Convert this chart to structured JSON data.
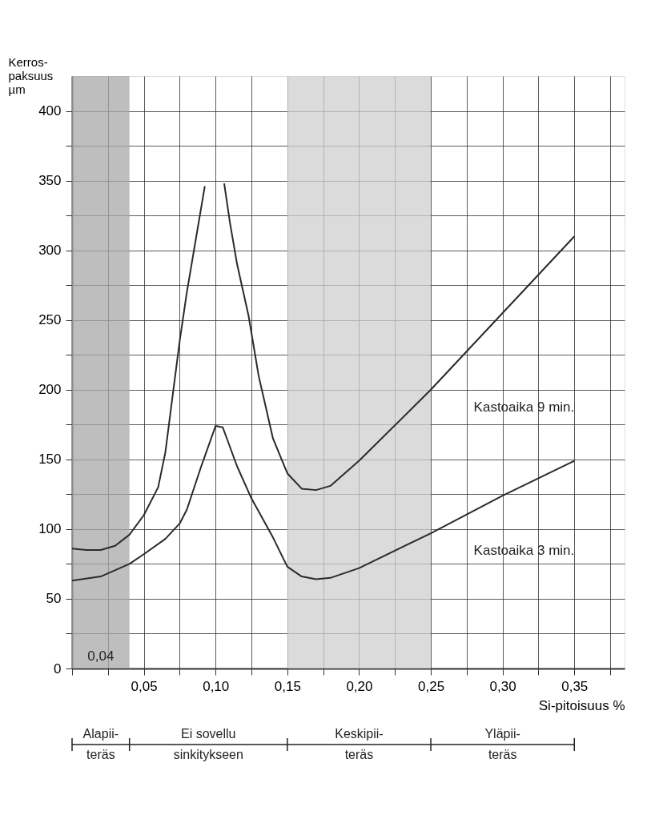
{
  "chart_data": {
    "type": "line",
    "ylabel": "Kerros-\npaksuus\nµm",
    "xlabel": "Si-pitoisuus   %",
    "xlim": [
      0,
      0.385
    ],
    "ylim": [
      0,
      425
    ],
    "xticks": [
      {
        "value": 0,
        "label": null
      },
      {
        "value": 0.025,
        "label": null
      },
      {
        "value": 0.05,
        "label": "0,05"
      },
      {
        "value": 0.075,
        "label": null
      },
      {
        "value": 0.1,
        "label": "0,10"
      },
      {
        "value": 0.125,
        "label": null
      },
      {
        "value": 0.15,
        "label": "0,15"
      },
      {
        "value": 0.175,
        "label": null
      },
      {
        "value": 0.2,
        "label": "0,20"
      },
      {
        "value": 0.225,
        "label": null
      },
      {
        "value": 0.25,
        "label": "0,25"
      },
      {
        "value": 0.275,
        "label": null
      },
      {
        "value": 0.3,
        "label": "0,30"
      },
      {
        "value": 0.325,
        "label": null
      },
      {
        "value": 0.35,
        "label": "0,35"
      },
      {
        "value": 0.375,
        "label": null
      }
    ],
    "yticks": [
      0,
      {
        "value": 25,
        "label": null
      },
      50,
      {
        "value": 75,
        "label": null
      },
      100,
      {
        "value": 125,
        "label": null
      },
      150,
      {
        "value": 175,
        "label": null
      },
      200,
      {
        "value": 225,
        "label": null
      },
      250,
      {
        "value": 275,
        "label": null
      },
      300,
      {
        "value": 325,
        "label": null
      },
      350,
      {
        "value": 375,
        "label": null
      },
      400
    ],
    "grid": true,
    "marker": "none",
    "line_style": "solid",
    "series": [
      {
        "name": "Kastoaika 9 min.",
        "color": "#2a2a2a",
        "x": [
          0,
          0.01,
          0.02,
          0.03,
          0.04,
          0.05,
          0.06,
          0.065,
          0.07,
          0.075,
          0.08,
          0.0925,
          0.1,
          0.106,
          0.11,
          0.115,
          0.123,
          0.13,
          0.14,
          0.15,
          0.16,
          0.17,
          0.18,
          0.2,
          0.25,
          0.3,
          0.35
        ],
        "values": [
          86,
          85,
          85,
          88,
          96,
          110,
          130,
          155,
          195,
          235,
          270,
          346,
          null,
          348,
          320,
          290,
          253,
          210,
          165,
          140,
          129,
          128,
          131,
          149,
          200,
          255,
          310
        ]
      },
      {
        "name": "Kastoaika 3 min.",
        "color": "#2a2a2a",
        "x": [
          0,
          0.02,
          0.04,
          0.05,
          0.065,
          0.075,
          0.08,
          0.09,
          0.1,
          0.105,
          0.115,
          0.125,
          0.14,
          0.15,
          0.16,
          0.17,
          0.18,
          0.2,
          0.25,
          0.3,
          0.35
        ],
        "values": [
          63,
          66,
          75,
          82,
          93,
          104,
          114,
          145,
          174,
          173,
          145,
          122,
          94,
          73,
          66,
          64,
          65,
          72,
          97,
          124,
          149
        ]
      }
    ],
    "bands": [
      {
        "axis": "x",
        "from": 0,
        "to": 0.04,
        "color": "#a8a8a8"
      },
      {
        "axis": "x",
        "from": 0.15,
        "to": 0.25,
        "color": "#cfcfcf"
      }
    ],
    "annotations": [
      "0,04",
      "Alapii-\nteräs",
      "Ei sovellu\nsinkitykseen",
      "Keskipii-\nteräs",
      "Yläpii-\nteräs"
    ]
  }
}
